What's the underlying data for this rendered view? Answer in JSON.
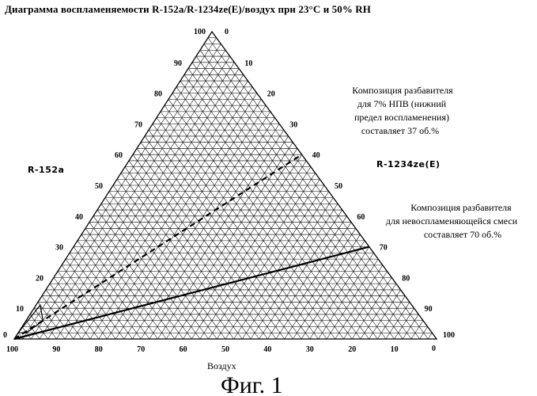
{
  "title": "Диаграмма воспламеняемости R-152a/R-1234ze(E)/воздух при 23°C и 50% RH",
  "left_axis_label": "R-152a",
  "right_axis_label": "R-1234ze(E)",
  "bottom_axis_label": "Воздух",
  "figure_caption": "Фиг. 1",
  "apex_labels": {
    "top_left": "100",
    "top_right": "0",
    "left_corner": "0",
    "bottom_left": "100",
    "right_corner_top": "100",
    "right_corner_bottom": "0"
  },
  "left_ticks": [
    "90",
    "80",
    "70",
    "60",
    "50",
    "40",
    "30",
    "20",
    "10"
  ],
  "right_ticks": [
    "10",
    "20",
    "30",
    "40",
    "50",
    "60",
    "70",
    "80",
    "90"
  ],
  "bottom_ticks": [
    "90",
    "80",
    "70",
    "60",
    "50",
    "40",
    "30",
    "20",
    "10"
  ],
  "annotation_lfl": [
    "Композиция разбавителя",
    "для 7% НПВ (нижний",
    "предел воспламенения)",
    "составляет 37 об.%"
  ],
  "annotation_nonflam": [
    "Композиция разбавителя",
    "для невоспламеняющейся смеси",
    "составляет 70 об.%"
  ],
  "chart_data": {
    "type": "ternary",
    "axes": [
      "R-152a",
      "R-1234ze(E)",
      "Воздух"
    ],
    "grid_step": 2,
    "major_step": 10,
    "lines": [
      {
        "style": "dashed",
        "start": {
          "R-152a": 0,
          "R-1234ze(E)": 0,
          "Воздух": 100
        },
        "end": {
          "R-152a": 60,
          "R-1234ze(E)": 40,
          "Воздух": 0
        }
      },
      {
        "style": "solid",
        "start": {
          "R-152a": 0,
          "R-1234ze(E)": 0,
          "Воздух": 100
        },
        "end": {
          "R-152a": 30,
          "R-1234ze(E)": 70,
          "Воздух": 0
        }
      }
    ],
    "flammable_envelope": [
      {
        "R-152a": 2,
        "R-1234ze(E)": 0,
        "Воздух": 98
      },
      {
        "R-152a": 11,
        "R-1234ze(E)": 1,
        "Воздух": 88
      },
      {
        "R-152a": 6,
        "R-1234ze(E)": 4,
        "Воздух": 90
      },
      {
        "R-152a": 2,
        "R-1234ze(E)": 2,
        "Воздух": 96
      }
    ]
  }
}
